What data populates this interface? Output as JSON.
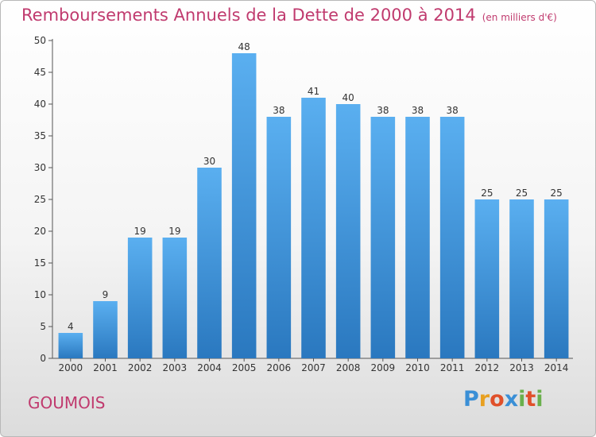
{
  "title": "Remboursements Annuels de la Dette de 2000 à 2014",
  "subtitle": "(en milliers d'€)",
  "commune": "GOUMOIS",
  "logo": {
    "letters": [
      "P",
      "r",
      "o",
      "x",
      "i",
      "t",
      "i"
    ],
    "colors": [
      "#3a8fd6",
      "#e8a020",
      "#e0502a",
      "#3a8fd6",
      "#6ab04c",
      "#e0502a",
      "#6ab04c"
    ]
  },
  "colors": {
    "bar_top": "#5aaff0",
    "bar_bottom": "#2a78bf",
    "title": "#c03a6e"
  },
  "chart_data": {
    "type": "bar",
    "categories": [
      "2000",
      "2001",
      "2002",
      "2003",
      "2004",
      "2005",
      "2006",
      "2007",
      "2008",
      "2009",
      "2010",
      "2011",
      "2012",
      "2013",
      "2014"
    ],
    "values": [
      4,
      9,
      19,
      19,
      30,
      48,
      38,
      41,
      40,
      38,
      38,
      38,
      25,
      25,
      25
    ],
    "ylim": [
      0,
      50
    ],
    "yticks": [
      0,
      5,
      10,
      15,
      20,
      25,
      30,
      35,
      40,
      45,
      50
    ],
    "grid": false,
    "data_labels": true
  }
}
